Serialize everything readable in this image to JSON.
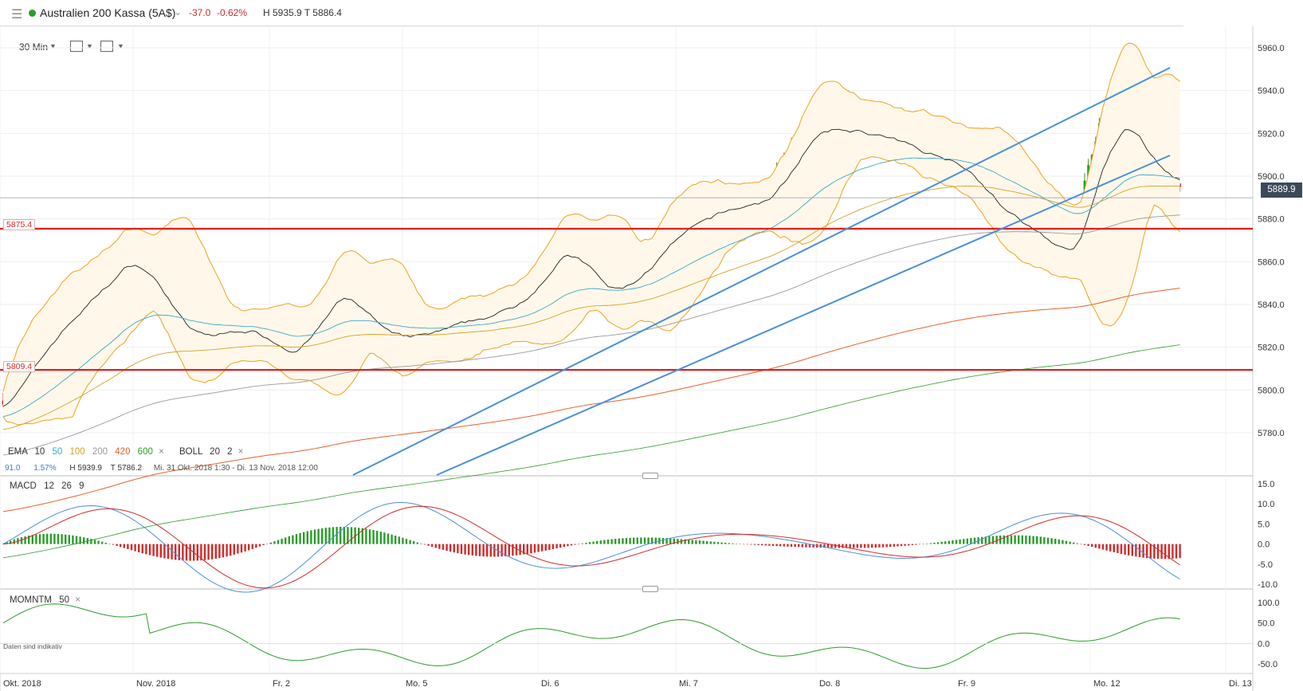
{
  "header": {
    "menu_icon": "hamburger-icon",
    "status_color": "#2a9d2a",
    "title": "Australien 200 Kassa (5A$)",
    "change": "-37.0",
    "change_pct": "-0.62%",
    "high_low": "H 5935.9 T 5886.4"
  },
  "toolbar": {
    "timeframe": "30 Min",
    "chart_type_icon": "candlestick-icon",
    "layout_icon": "window-icon"
  },
  "price_axis": {
    "ticks": [
      "5960.0",
      "5940.0",
      "5920.0",
      "5900.0",
      "5880.0",
      "5860.0",
      "5840.0",
      "5820.0",
      "5800.0",
      "5780.0"
    ],
    "current": "5889.9"
  },
  "hlines": {
    "upper": "5875.4",
    "lower": "5809.4"
  },
  "indicators": {
    "ema_label": "EMA",
    "ema_10": "10",
    "ema_50": "50",
    "ema_100": "100",
    "ema_200": "200",
    "ema_420": "420",
    "ema_600": "600",
    "boll_label": "BOLL",
    "boll_period": "20",
    "boll_dev": "2",
    "stats_a": "91.0",
    "stats_b": "1.57%",
    "stats_h": "H 5939.9",
    "stats_t": "T 5786.2",
    "range": "Mi. 31 Okt. 2018 1:30 - Di. 13 Nov. 2018 12:00"
  },
  "macd": {
    "label": "MACD",
    "p1": "12",
    "p2": "26",
    "p3": "9",
    "ticks": [
      "15.0",
      "10.0",
      "5.0",
      "0.0",
      "-5.0",
      "-10.0"
    ]
  },
  "momentum": {
    "label": "MOMNTM",
    "period": "50",
    "ticks": [
      "100.0",
      "50.0",
      "0.0",
      "-50.0"
    ]
  },
  "disclaimer": "Daten sind indikativ",
  "dates": [
    "Okt. 2018",
    "Nov. 2018",
    "Fr. 2",
    "Mo. 5",
    "Di. 6",
    "Mi. 7",
    "Do. 8",
    "Fr. 9",
    "Mo. 12",
    "Di. 13"
  ],
  "colors": {
    "up": "#2a9d2a",
    "down": "#d12b2b",
    "boll": "#f0a830",
    "trend": "#4a90d9",
    "hline": "#e02020"
  }
}
